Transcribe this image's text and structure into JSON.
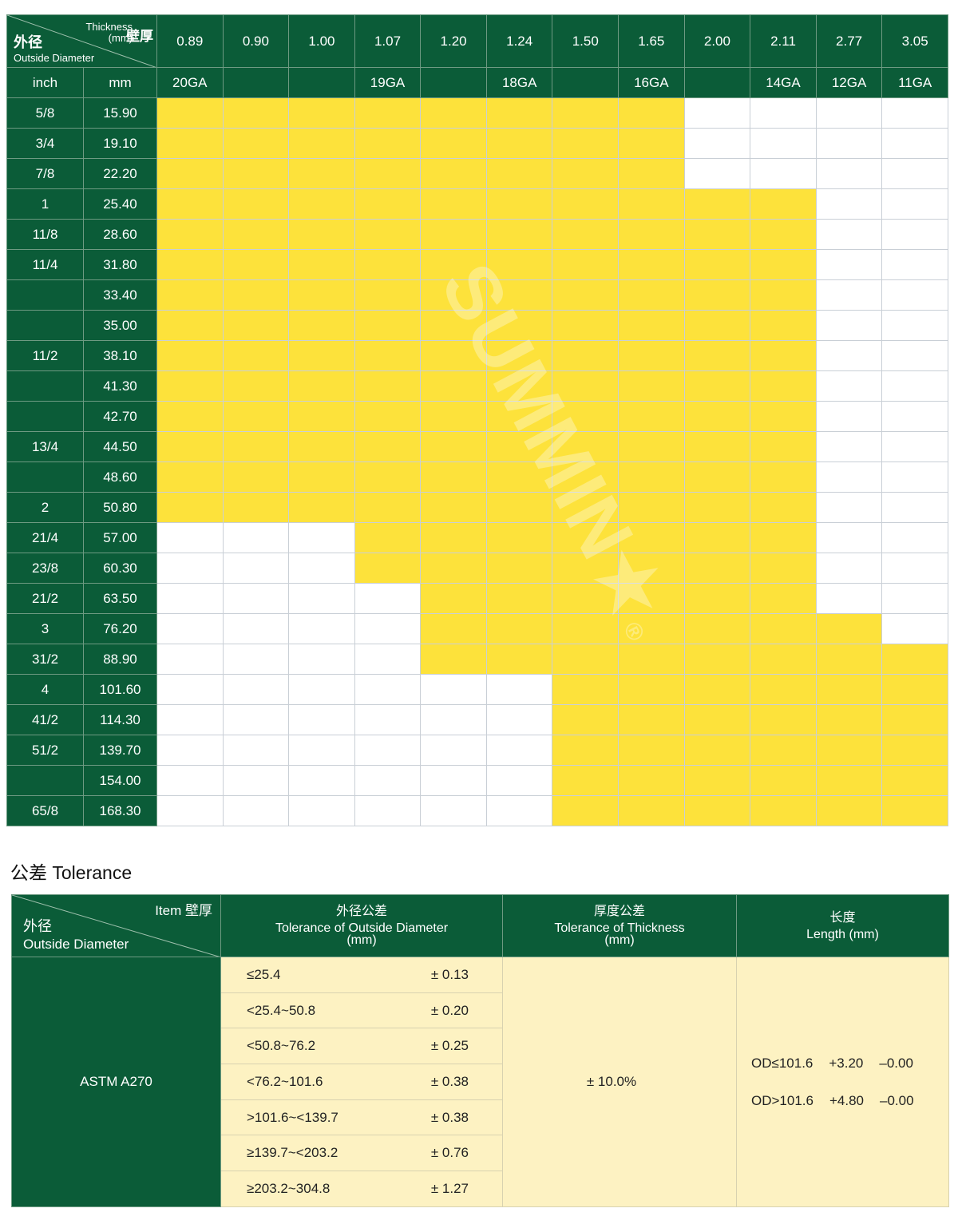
{
  "colors": {
    "header_green": "#0b5c38",
    "available_yellow": "#fde23b",
    "cream": "#fdf2c2"
  },
  "size_table": {
    "corner": {
      "od_zh": "外径",
      "od_en": "Outside Diameter",
      "thickness_en": "Thickness",
      "thickness_unit": "(mm)",
      "thickness_zh": "壁厚"
    },
    "thickness_mm": [
      "0.89",
      "0.90",
      "1.00",
      "1.07",
      "1.20",
      "1.24",
      "1.50",
      "1.65",
      "2.00",
      "2.11",
      "2.77",
      "3.05"
    ],
    "gauges": [
      "20GA",
      "",
      "",
      "19GA",
      "",
      "18GA",
      "",
      "16GA",
      "",
      "14GA",
      "12GA",
      "11GA"
    ],
    "unit_headers": {
      "inch": "inch",
      "mm": "mm"
    },
    "rows": [
      {
        "inch": "5/8",
        "mm": "15.90",
        "available_from": "0.89",
        "available_to": "1.65"
      },
      {
        "inch": "3/4",
        "mm": "19.10",
        "available_from": "0.89",
        "available_to": "1.65"
      },
      {
        "inch": "7/8",
        "mm": "22.20",
        "available_from": "0.89",
        "available_to": "1.65"
      },
      {
        "inch": "1",
        "mm": "25.40",
        "available_from": "0.89",
        "available_to": "2.11"
      },
      {
        "inch": "11/8",
        "mm": "28.60",
        "available_from": "0.89",
        "available_to": "2.11"
      },
      {
        "inch": "11/4",
        "mm": "31.80",
        "available_from": "0.89",
        "available_to": "2.11"
      },
      {
        "inch": "",
        "mm": "33.40",
        "available_from": "0.89",
        "available_to": "2.11"
      },
      {
        "inch": "",
        "mm": "35.00",
        "available_from": "0.89",
        "available_to": "2.11"
      },
      {
        "inch": "11/2",
        "mm": "38.10",
        "available_from": "0.89",
        "available_to": "2.11"
      },
      {
        "inch": "",
        "mm": "41.30",
        "available_from": "0.89",
        "available_to": "2.11"
      },
      {
        "inch": "",
        "mm": "42.70",
        "available_from": "0.89",
        "available_to": "2.11"
      },
      {
        "inch": "13/4",
        "mm": "44.50",
        "available_from": "0.89",
        "available_to": "2.11"
      },
      {
        "inch": "",
        "mm": "48.60",
        "available_from": "0.89",
        "available_to": "2.11"
      },
      {
        "inch": "2",
        "mm": "50.80",
        "available_from": "0.89",
        "available_to": "2.11"
      },
      {
        "inch": "21/4",
        "mm": "57.00",
        "available_from": "1.07",
        "available_to": "2.11"
      },
      {
        "inch": "23/8",
        "mm": "60.30",
        "available_from": "1.07",
        "available_to": "2.11"
      },
      {
        "inch": "21/2",
        "mm": "63.50",
        "available_from": "1.20",
        "available_to": "2.11"
      },
      {
        "inch": "3",
        "mm": "76.20",
        "available_from": "1.20",
        "available_to": "2.77"
      },
      {
        "inch": "31/2",
        "mm": "88.90",
        "available_from": "1.20",
        "available_to": "3.05"
      },
      {
        "inch": "4",
        "mm": "101.60",
        "available_from": "1.50",
        "available_to": "3.05"
      },
      {
        "inch": "41/2",
        "mm": "114.30",
        "available_from": "1.50",
        "available_to": "3.05"
      },
      {
        "inch": "51/2",
        "mm": "139.70",
        "available_from": "1.50",
        "available_to": "3.05"
      },
      {
        "inch": "",
        "mm": "154.00",
        "available_from": "1.50",
        "available_to": "3.05"
      },
      {
        "inch": "65/8",
        "mm": "168.30",
        "available_from": "1.50",
        "available_to": "3.05"
      }
    ],
    "watermark": "SUMMIN★®"
  },
  "tolerance": {
    "title": "公差 Tolerance",
    "corner": {
      "item": "Item 壁厚",
      "od_zh": "外径",
      "od_en": "Outside Diameter"
    },
    "headers": [
      {
        "zh": "外径公差",
        "en": "Tolerance of Outside Diameter",
        "unit": "(mm)"
      },
      {
        "zh": "厚度公差",
        "en": "Tolerance of Thickness",
        "unit": "(mm)"
      },
      {
        "zh": "长度",
        "en": "Length  (mm)",
        "unit": ""
      }
    ],
    "standard": "ASTM A270",
    "od_tolerances": [
      {
        "range": "≤25.4",
        "value": "± 0.13"
      },
      {
        "range": "<25.4~50.8",
        "value": "± 0.20"
      },
      {
        "range": "<50.8~76.2",
        "value": "± 0.25"
      },
      {
        "range": "<76.2~101.6",
        "value": "± 0.38"
      },
      {
        "range": ">101.6~<139.7",
        "value": "± 0.38"
      },
      {
        "range": "≥139.7~<203.2",
        "value": "± 0.76"
      },
      {
        "range": "≥203.2~304.8",
        "value": "± 1.27"
      }
    ],
    "thickness_tolerance": "± 10.0%",
    "length": [
      {
        "od": "OD≤101.6",
        "plus": "+3.20",
        "minus": "–0.00"
      },
      {
        "od": "OD>101.6",
        "plus": "+4.80",
        "minus": "–0.00"
      }
    ]
  }
}
